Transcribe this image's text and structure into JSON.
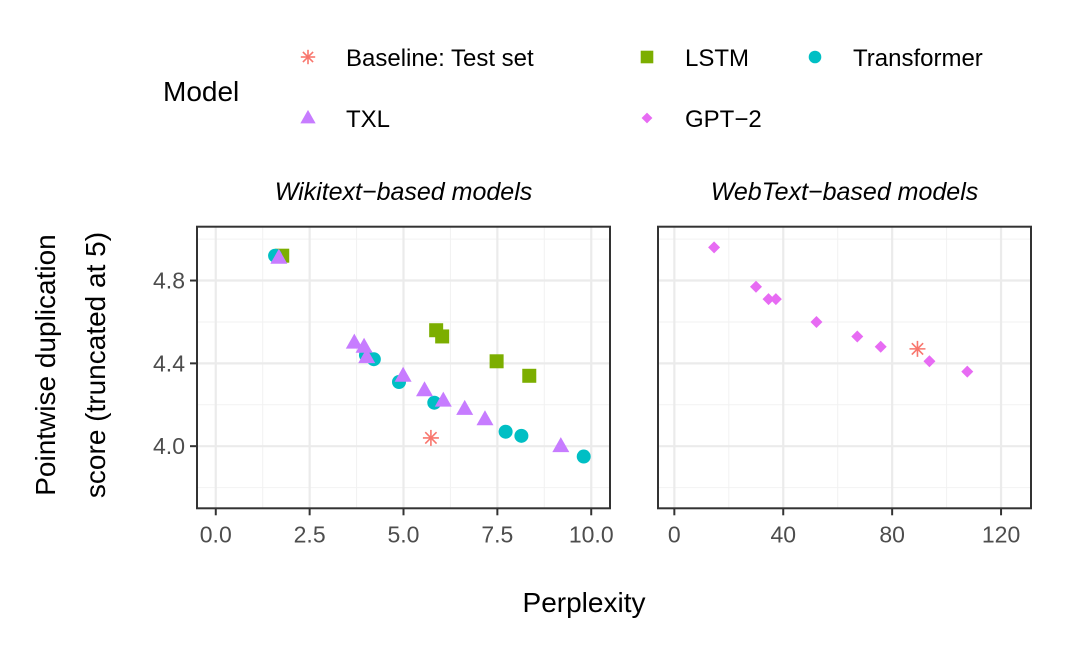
{
  "chart_data": {
    "type": "scatter",
    "xlabel": "Perplexity",
    "ylabel": "Pointwise duplication\nscore (truncated at 5)",
    "ylabel_lines": [
      "Pointwise duplication",
      "score (truncated at 5)"
    ],
    "ylim": [
      3.7,
      5.06
    ],
    "yticks": [
      "4.0",
      "4.4",
      "4.8"
    ],
    "ytick_values": [
      4.0,
      4.4,
      4.8
    ],
    "grid": true,
    "legend": {
      "title": "Model",
      "placement": "top",
      "entries": [
        {
          "name": "Baseline: Test set",
          "shape": "asterisk",
          "color": "#F8766D"
        },
        {
          "name": "LSTM",
          "shape": "square",
          "color": "#7CAE00"
        },
        {
          "name": "Transformer",
          "shape": "circle",
          "color": "#00BFC4"
        },
        {
          "name": "TXL",
          "shape": "triangle",
          "color": "#C77CFF"
        },
        {
          "name": "GPT−2",
          "shape": "diamond",
          "color": "#E76BF3"
        }
      ]
    },
    "panels": [
      {
        "title": "Wikitext−based models",
        "xlim": [
          -0.5,
          10.5
        ],
        "xticks": [
          "0.0",
          "2.5",
          "5.0",
          "7.5",
          "10.0"
        ],
        "xtick_values": [
          0,
          2.5,
          5,
          7.5,
          10
        ],
        "series": [
          {
            "name": "Baseline: Test set",
            "points": [
              [
                5.73,
                4.04
              ]
            ]
          },
          {
            "name": "LSTM",
            "points": [
              [
                1.77,
                4.92
              ],
              [
                5.87,
                4.56
              ],
              [
                6.03,
                4.53
              ],
              [
                7.48,
                4.41
              ],
              [
                8.35,
                4.34
              ]
            ]
          },
          {
            "name": "Transformer",
            "points": [
              [
                1.58,
                4.92
              ],
              [
                4.0,
                4.44
              ],
              [
                4.21,
                4.42
              ],
              [
                4.88,
                4.31
              ],
              [
                5.82,
                4.21
              ],
              [
                7.72,
                4.07
              ],
              [
                8.14,
                4.05
              ],
              [
                9.8,
                3.95
              ]
            ]
          },
          {
            "name": "TXL",
            "points": [
              [
                1.68,
                4.91
              ],
              [
                3.69,
                4.5
              ],
              [
                3.95,
                4.48
              ],
              [
                4.02,
                4.43
              ],
              [
                4.99,
                4.34
              ],
              [
                5.56,
                4.27
              ],
              [
                6.06,
                4.22
              ],
              [
                6.63,
                4.18
              ],
              [
                7.17,
                4.13
              ],
              [
                9.19,
                4.0
              ]
            ]
          }
        ]
      },
      {
        "title": "WebText−based models",
        "xlim": [
          -6,
          131
        ],
        "xticks": [
          "0",
          "40",
          "80",
          "120"
        ],
        "xtick_values": [
          0,
          40,
          80,
          120
        ],
        "series": [
          {
            "name": "Baseline: Test set",
            "points": [
              [
                89.3,
                4.47
              ]
            ]
          },
          {
            "name": "GPT−2",
            "points": [
              [
                14.6,
                4.96
              ],
              [
                30.0,
                4.77
              ],
              [
                34.6,
                4.71
              ],
              [
                37.3,
                4.71
              ],
              [
                52.2,
                4.6
              ],
              [
                67.2,
                4.53
              ],
              [
                75.8,
                4.48
              ],
              [
                93.7,
                4.41
              ],
              [
                107.6,
                4.36
              ]
            ]
          }
        ]
      }
    ]
  }
}
